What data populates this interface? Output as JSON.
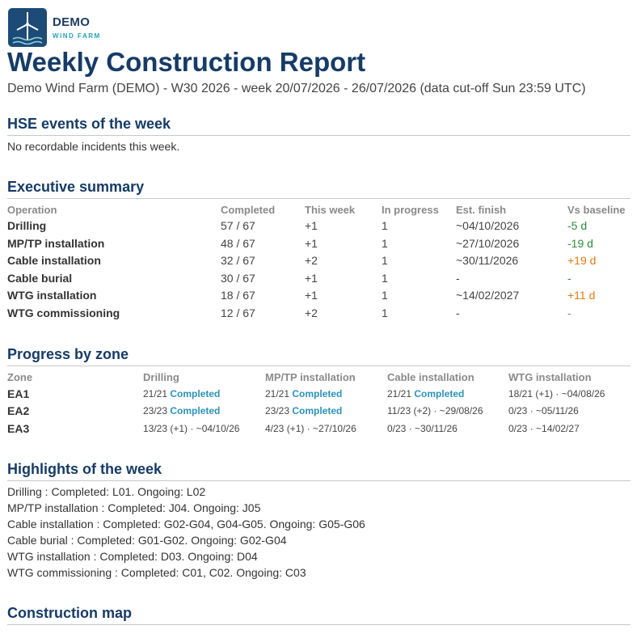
{
  "logo": {
    "name": "DEMO",
    "subtitle": "WIND FARM",
    "bg_color": "#1d4b78",
    "accent_color": "#25a3b5"
  },
  "title": "Weekly Construction Report",
  "subtitle": "Demo Wind Farm (DEMO) - W30 2026 - week 20/07/2026 - 26/07/2026 (data cut-off Sun 23:59 UTC)",
  "hse": {
    "heading": "HSE events of the week",
    "text": "No recordable incidents this week."
  },
  "summary": {
    "heading": "Executive summary",
    "columns": [
      "Operation",
      "Completed",
      "This week",
      "In progress",
      "Est. finish",
      "Vs baseline"
    ],
    "rows": [
      {
        "operation": "Drilling",
        "completed": "57 / 67",
        "this_week": "+1",
        "in_progress": "1",
        "est_finish": "~04/10/2026",
        "vs_baseline": "-5 d",
        "status": "good"
      },
      {
        "operation": "MP/TP installation",
        "completed": "48 / 67",
        "this_week": "+1",
        "in_progress": "1",
        "est_finish": "~27/10/2026",
        "vs_baseline": "-19 d",
        "status": "good"
      },
      {
        "operation": "Cable installation",
        "completed": "32 / 67",
        "this_week": "+2",
        "in_progress": "1",
        "est_finish": "~30/11/2026",
        "vs_baseline": "+19 d",
        "status": "late"
      },
      {
        "operation": "Cable burial",
        "completed": "30 / 67",
        "this_week": "+1",
        "in_progress": "1",
        "est_finish": "-",
        "vs_baseline": "-",
        "status": "good"
      },
      {
        "operation": "WTG installation",
        "completed": "18 / 67",
        "this_week": "+1",
        "in_progress": "1",
        "est_finish": "~14/02/2027",
        "vs_baseline": "+11 d",
        "status": "late"
      },
      {
        "operation": "WTG commissioning",
        "completed": "12 / 67",
        "this_week": "+2",
        "in_progress": "1",
        "est_finish": "-",
        "vs_baseline": "-",
        "status": "neutral"
      }
    ],
    "status_colors": {
      "good": "#2e8b3a",
      "late": "#e07b12",
      "neutral": "#8a8a8a"
    }
  },
  "zones": {
    "heading": "Progress by zone",
    "columns": [
      "Zone",
      "Drilling",
      "MP/TP installation",
      "Cable installation",
      "WTG installation"
    ],
    "completed_color": "#2a93b8",
    "rows": [
      {
        "zone": "EA1",
        "cells": [
          {
            "count": "21/21",
            "status": "Completed"
          },
          {
            "count": "21/21",
            "status": "Completed"
          },
          {
            "count": "21/21",
            "status": "Completed"
          },
          {
            "count": "18/21 (+1) · ~04/08/26",
            "status": ""
          }
        ]
      },
      {
        "zone": "EA2",
        "cells": [
          {
            "count": "23/23",
            "status": "Completed"
          },
          {
            "count": "23/23",
            "status": "Completed"
          },
          {
            "count": "11/23 (+2) · ~29/08/26",
            "status": ""
          },
          {
            "count": "0/23 · ~05/11/26",
            "status": ""
          }
        ]
      },
      {
        "zone": "EA3",
        "cells": [
          {
            "count": "13/23 (+1) · ~04/10/26",
            "status": ""
          },
          {
            "count": "4/23 (+1) · ~27/10/26",
            "status": ""
          },
          {
            "count": "0/23 · ~30/11/26",
            "status": ""
          },
          {
            "count": "0/23 · ~14/02/27",
            "status": ""
          }
        ]
      }
    ]
  },
  "highlights": {
    "heading": "Highlights of the week",
    "items": [
      "Drilling : Completed: L01. Ongoing: L02",
      "MP/TP installation : Completed: J04. Ongoing: J05",
      "Cable installation : Completed: G02-G04, G04-G05. Ongoing: G05-G06",
      "Cable burial : Completed: G01-G02. Ongoing: G02-G04",
      "WTG installation : Completed: D03. Ongoing: D04",
      "WTG commissioning : Completed: C01, C02. Ongoing: C03"
    ]
  },
  "map": {
    "heading": "Construction map"
  }
}
